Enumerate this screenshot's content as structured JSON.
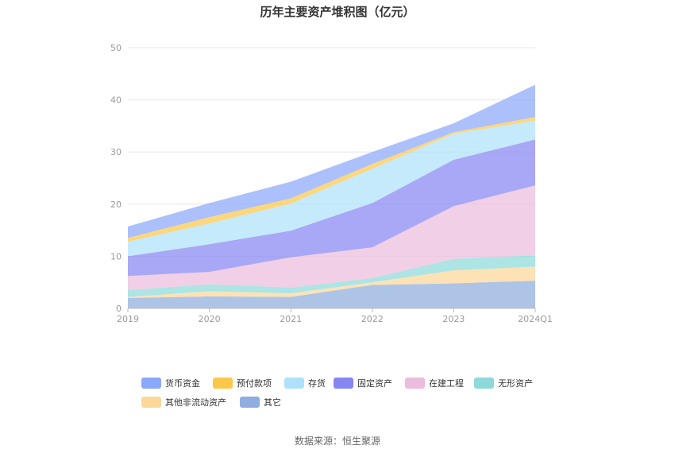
{
  "chart_data": {
    "type": "area",
    "stacked": true,
    "title": "历年主要资产堆积图（亿元）",
    "categories": [
      "2019",
      "2020",
      "2021",
      "2022",
      "2023",
      "2024Q1"
    ],
    "ylim": [
      0,
      50
    ],
    "yticks": [
      "0",
      "10",
      "20",
      "30",
      "40",
      "50"
    ],
    "grid": true,
    "legend_position": "bottom",
    "series": [
      {
        "name": "其它",
        "color": "#8fadde",
        "values": [
          2.0,
          2.3,
          2.2,
          4.5,
          4.8,
          5.3
        ]
      },
      {
        "name": "其他非流动资产",
        "color": "#fcd79a",
        "values": [
          0.2,
          1.0,
          0.7,
          0.5,
          2.5,
          2.7
        ]
      },
      {
        "name": "无形资产",
        "color": "#8ed9d9",
        "values": [
          1.3,
          1.3,
          1.1,
          0.8,
          2.2,
          2.2
        ]
      },
      {
        "name": "在建工程",
        "color": "#ebbcdc",
        "values": [
          2.7,
          2.4,
          5.8,
          5.9,
          10.1,
          13.4
        ]
      },
      {
        "name": "固定资产",
        "color": "#8686f2",
        "values": [
          3.8,
          5.3,
          5.1,
          8.5,
          8.9,
          8.8
        ]
      },
      {
        "name": "存货",
        "color": "#afe2fa",
        "values": [
          2.8,
          4.0,
          5.2,
          6.6,
          5.0,
          3.6
        ]
      },
      {
        "name": "预付款项",
        "color": "#fcc84a",
        "values": [
          0.7,
          1.2,
          1.0,
          0.9,
          0.3,
          0.7
        ]
      },
      {
        "name": "货币资金",
        "color": "#8ca8fa",
        "values": [
          2.2,
          2.7,
          3.2,
          2.3,
          1.7,
          6.2
        ]
      }
    ],
    "legend_order": [
      "货币资金",
      "预付款项",
      "存货",
      "固定资产",
      "在建工程",
      "无形资产",
      "其他非流动资产",
      "其它"
    ]
  },
  "source": "数据来源：恒生聚源"
}
